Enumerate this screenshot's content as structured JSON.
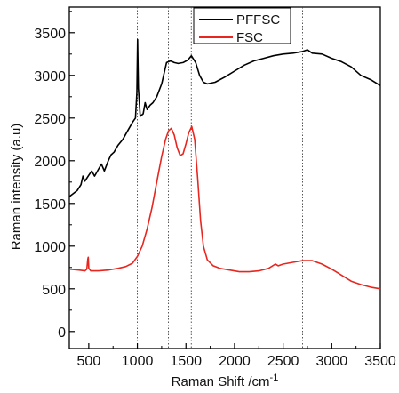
{
  "chart_data": {
    "type": "line",
    "title": "",
    "xlabel": "Raman Shift /cm",
    "xlabel_superscript": "-1",
    "ylabel": "Raman intensity (a.u)",
    "xlim": [
      300,
      3500
    ],
    "ylim": [
      -200,
      3800
    ],
    "xticks": [
      "500",
      "1000",
      "1500",
      "2000",
      "2500",
      "3000",
      "3500"
    ],
    "yticks": [
      "0",
      "500",
      "1000",
      "1500",
      "2000",
      "2500",
      "3000",
      "3500"
    ],
    "grid": false,
    "legend_position": "top-center",
    "reference_lines": [
      1000,
      1320,
      1555,
      2700
    ],
    "series": [
      {
        "name": "PFFSC",
        "color": "#000000",
        "points": [
          [
            300,
            1580
          ],
          [
            380,
            1650
          ],
          [
            420,
            1720
          ],
          [
            440,
            1820
          ],
          [
            460,
            1760
          ],
          [
            500,
            1830
          ],
          [
            530,
            1880
          ],
          [
            560,
            1820
          ],
          [
            600,
            1900
          ],
          [
            630,
            1960
          ],
          [
            660,
            1880
          ],
          [
            700,
            2000
          ],
          [
            730,
            2070
          ],
          [
            760,
            2100
          ],
          [
            800,
            2180
          ],
          [
            850,
            2250
          ],
          [
            900,
            2350
          ],
          [
            950,
            2450
          ],
          [
            980,
            2500
          ],
          [
            995,
            2800
          ],
          [
            1002,
            3420
          ],
          [
            1010,
            2850
          ],
          [
            1030,
            2520
          ],
          [
            1060,
            2550
          ],
          [
            1080,
            2680
          ],
          [
            1100,
            2600
          ],
          [
            1130,
            2650
          ],
          [
            1160,
            2680
          ],
          [
            1200,
            2750
          ],
          [
            1250,
            2900
          ],
          [
            1300,
            3150
          ],
          [
            1340,
            3170
          ],
          [
            1380,
            3150
          ],
          [
            1420,
            3140
          ],
          [
            1470,
            3150
          ],
          [
            1520,
            3180
          ],
          [
            1555,
            3230
          ],
          [
            1600,
            3150
          ],
          [
            1640,
            3000
          ],
          [
            1680,
            2920
          ],
          [
            1720,
            2900
          ],
          [
            1800,
            2920
          ],
          [
            1900,
            2980
          ],
          [
            2000,
            3050
          ],
          [
            2100,
            3120
          ],
          [
            2200,
            3170
          ],
          [
            2300,
            3200
          ],
          [
            2400,
            3230
          ],
          [
            2500,
            3250
          ],
          [
            2600,
            3260
          ],
          [
            2700,
            3280
          ],
          [
            2750,
            3300
          ],
          [
            2800,
            3260
          ],
          [
            2900,
            3250
          ],
          [
            3000,
            3200
          ],
          [
            3100,
            3160
          ],
          [
            3200,
            3100
          ],
          [
            3300,
            3000
          ],
          [
            3400,
            2950
          ],
          [
            3500,
            2880
          ]
        ]
      },
      {
        "name": "FSC",
        "color": "#e8261f",
        "points": [
          [
            300,
            730
          ],
          [
            400,
            720
          ],
          [
            460,
            710
          ],
          [
            480,
            730
          ],
          [
            490,
            850
          ],
          [
            495,
            870
          ],
          [
            500,
            740
          ],
          [
            520,
            710
          ],
          [
            600,
            710
          ],
          [
            700,
            720
          ],
          [
            800,
            740
          ],
          [
            880,
            760
          ],
          [
            950,
            800
          ],
          [
            1000,
            880
          ],
          [
            1050,
            1000
          ],
          [
            1100,
            1200
          ],
          [
            1150,
            1450
          ],
          [
            1200,
            1750
          ],
          [
            1250,
            2050
          ],
          [
            1290,
            2250
          ],
          [
            1320,
            2350
          ],
          [
            1350,
            2380
          ],
          [
            1380,
            2300
          ],
          [
            1410,
            2150
          ],
          [
            1440,
            2060
          ],
          [
            1470,
            2080
          ],
          [
            1500,
            2200
          ],
          [
            1530,
            2330
          ],
          [
            1560,
            2400
          ],
          [
            1590,
            2250
          ],
          [
            1620,
            1800
          ],
          [
            1650,
            1300
          ],
          [
            1680,
            1000
          ],
          [
            1720,
            840
          ],
          [
            1780,
            770
          ],
          [
            1850,
            740
          ],
          [
            1950,
            720
          ],
          [
            2050,
            700
          ],
          [
            2150,
            700
          ],
          [
            2250,
            710
          ],
          [
            2350,
            740
          ],
          [
            2420,
            790
          ],
          [
            2450,
            770
          ],
          [
            2500,
            790
          ],
          [
            2600,
            810
          ],
          [
            2700,
            830
          ],
          [
            2800,
            830
          ],
          [
            2900,
            790
          ],
          [
            3000,
            730
          ],
          [
            3100,
            660
          ],
          [
            3200,
            590
          ],
          [
            3300,
            550
          ],
          [
            3400,
            520
          ],
          [
            3500,
            500
          ]
        ]
      }
    ]
  }
}
